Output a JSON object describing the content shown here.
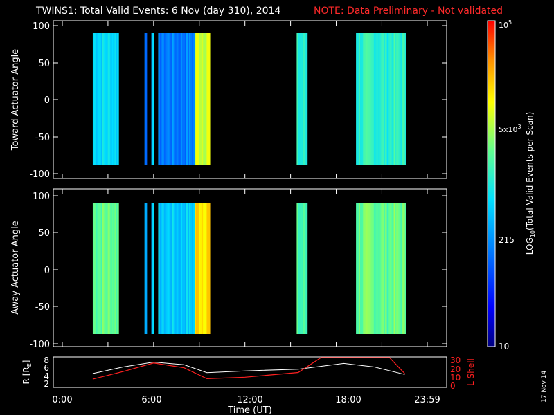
{
  "title": {
    "main": "TWINS1: Total Valid Events:  6 Nov (day 310), 2014",
    "note": "NOTE: Data Preliminary - Not validated",
    "note_color": "#ff2a2a"
  },
  "panels": {
    "top_ylabel": "Toward Actuator Angle",
    "bottom_ylabel": "Away Actuator Angle",
    "y_ticks": [
      "100",
      "50",
      "0",
      "-50",
      "-100"
    ],
    "orbit_ylabel": "R [R",
    "orbit_ylabel_sub": "E",
    "orbit_ylabel_end": "]",
    "orbit_yticks": [
      "8",
      "6",
      "4",
      "2"
    ],
    "lshell_label": "L Shell",
    "lshell_yticks": [
      "30",
      "20",
      "10",
      "0"
    ],
    "lshell_color": "#ff2020"
  },
  "x_axis": {
    "label": "Time (UT)",
    "ticks": [
      "0:00",
      "6:00",
      "12:00",
      "18:00",
      "23:59"
    ]
  },
  "colorbar": {
    "title_log": "LOG",
    "title_sub": "10",
    "title_rest": "(Total Valid  Events per Scan)",
    "tick_10": "10",
    "tick_215": "215",
    "tick_5k_mant": "5x10",
    "tick_5k_exp": "3",
    "tick_1e5_base": "10",
    "tick_1e5_exp": "5"
  },
  "side_date": "17 Nov 14",
  "chart_data": {
    "type": "heatmap",
    "x_unit": "hours UT",
    "x_range": [
      0,
      24
    ],
    "y_range": [
      -110,
      110
    ],
    "scale": "log",
    "color_range": [
      10,
      100000
    ],
    "top_panel": [
      {
        "t0": 2.0,
        "t1": 3.7,
        "level": 0.45
      },
      {
        "t0": 5.4,
        "t1": 5.55,
        "level": 0.3
      },
      {
        "t0": 5.85,
        "t1": 6.0,
        "level": 0.4
      },
      {
        "t0": 6.3,
        "t1": 8.7,
        "level": 0.3
      },
      {
        "t0": 8.7,
        "t1": 9.7,
        "level": 0.72
      },
      {
        "t0": 15.4,
        "t1": 16.1,
        "level": 0.5
      },
      {
        "t0": 19.3,
        "t1": 22.6,
        "level": 0.52
      }
    ],
    "bottom_panel": [
      {
        "t0": 2.0,
        "t1": 3.7,
        "level": 0.6
      },
      {
        "t0": 5.4,
        "t1": 5.55,
        "level": 0.4
      },
      {
        "t0": 5.85,
        "t1": 6.0,
        "level": 0.4
      },
      {
        "t0": 6.3,
        "t1": 8.7,
        "level": 0.42
      },
      {
        "t0": 8.7,
        "t1": 9.7,
        "level": 0.8
      },
      {
        "t0": 15.4,
        "t1": 16.1,
        "level": 0.55
      },
      {
        "t0": 19.3,
        "t1": 22.6,
        "level": 0.6
      }
    ],
    "orbit_R": [
      {
        "t": 2.0,
        "v": 5.0
      },
      {
        "t": 4.0,
        "v": 6.5
      },
      {
        "t": 6.0,
        "v": 7.6
      },
      {
        "t": 8.0,
        "v": 7.0
      },
      {
        "t": 9.5,
        "v": 5.2
      },
      {
        "t": 12.0,
        "v": 5.6
      },
      {
        "t": 15.5,
        "v": 6.0
      },
      {
        "t": 18.5,
        "v": 7.3
      },
      {
        "t": 20.5,
        "v": 6.5
      },
      {
        "t": 22.5,
        "v": 4.8
      }
    ],
    "orbit_L": [
      {
        "t": 2.0,
        "v": 8.0
      },
      {
        "t": 4.0,
        "v": 16.0
      },
      {
        "t": 6.0,
        "v": 25.0
      },
      {
        "t": 8.0,
        "v": 20.0
      },
      {
        "t": 9.5,
        "v": 8.5
      },
      {
        "t": 12.0,
        "v": 10.0
      },
      {
        "t": 15.5,
        "v": 15.0
      },
      {
        "t": 17.0,
        "v": 31.0
      },
      {
        "t": 21.5,
        "v": 31.0
      },
      {
        "t": 22.5,
        "v": 14.0
      }
    ]
  }
}
